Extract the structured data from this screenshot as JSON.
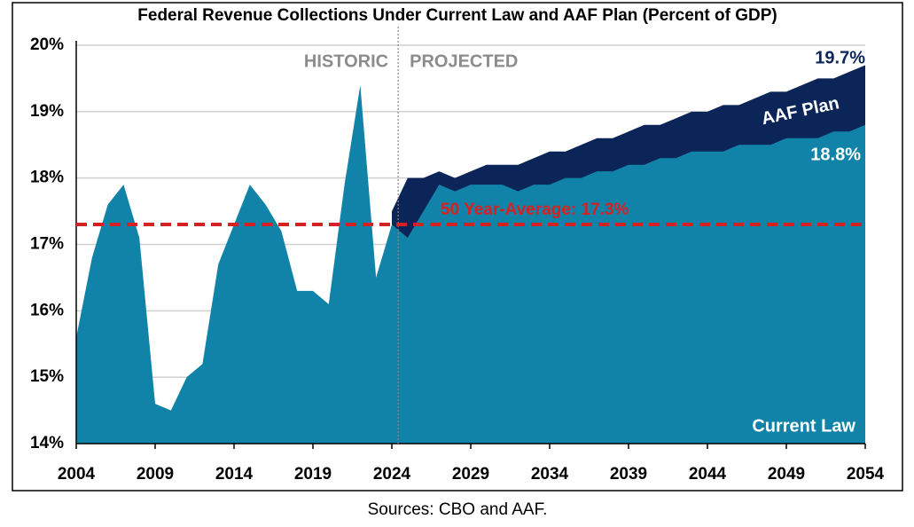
{
  "chart_data": {
    "type": "area",
    "title": "Federal Revenue Collections Under Current Law and AAF Plan (Percent of GDP)",
    "source": "Sources: CBO and AAF.",
    "x": [
      2004,
      2005,
      2006,
      2007,
      2008,
      2009,
      2010,
      2011,
      2012,
      2013,
      2014,
      2015,
      2016,
      2017,
      2018,
      2019,
      2020,
      2021,
      2022,
      2023,
      2024,
      2025,
      2026,
      2027,
      2028,
      2029,
      2030,
      2031,
      2032,
      2033,
      2034,
      2035,
      2036,
      2037,
      2038,
      2039,
      2040,
      2041,
      2042,
      2043,
      2044,
      2045,
      2046,
      2047,
      2048,
      2049,
      2050,
      2051,
      2052,
      2053,
      2054
    ],
    "series": [
      {
        "name": "AAF Plan",
        "color": "#0b2559",
        "end_label": "19.7%",
        "values": [
          null,
          null,
          null,
          null,
          null,
          null,
          null,
          null,
          null,
          null,
          null,
          null,
          null,
          null,
          null,
          null,
          null,
          null,
          null,
          null,
          17.5,
          18.0,
          18.0,
          18.1,
          18.0,
          18.1,
          18.2,
          18.2,
          18.2,
          18.3,
          18.4,
          18.4,
          18.5,
          18.6,
          18.6,
          18.7,
          18.8,
          18.8,
          18.9,
          19.0,
          19.0,
          19.1,
          19.1,
          19.2,
          19.3,
          19.3,
          19.4,
          19.5,
          19.5,
          19.6,
          19.7
        ]
      },
      {
        "name": "Current Law",
        "color": "#1283a8",
        "end_label": "18.8%",
        "values": [
          15.6,
          16.8,
          17.6,
          17.9,
          17.1,
          14.6,
          14.5,
          15.0,
          15.2,
          16.7,
          17.3,
          17.9,
          17.6,
          17.2,
          16.3,
          16.3,
          16.1,
          17.9,
          19.4,
          16.5,
          17.3,
          17.1,
          17.5,
          17.9,
          17.8,
          17.9,
          17.9,
          17.9,
          17.8,
          17.9,
          17.9,
          18.0,
          18.0,
          18.1,
          18.1,
          18.2,
          18.2,
          18.3,
          18.3,
          18.4,
          18.4,
          18.4,
          18.5,
          18.5,
          18.5,
          18.6,
          18.6,
          18.6,
          18.7,
          18.7,
          18.8
        ]
      }
    ],
    "reference_line": {
      "value": 17.3,
      "label": "50 Year-Average: 17.3%",
      "color": "#d42222"
    },
    "divider": {
      "x": 2024.4,
      "left_label": "HISTORIC",
      "right_label": "PROJECTED"
    },
    "xlim": [
      2004,
      2054
    ],
    "xticks": [
      2004,
      2009,
      2014,
      2019,
      2024,
      2029,
      2034,
      2039,
      2044,
      2049,
      2054
    ],
    "ylim": [
      14,
      20
    ],
    "yticks": [
      {
        "value": 14,
        "label": "14%"
      },
      {
        "value": 15,
        "label": "15%"
      },
      {
        "value": 16,
        "label": "16%"
      },
      {
        "value": 17,
        "label": "17%"
      },
      {
        "value": 18,
        "label": "18%"
      },
      {
        "value": 19,
        "label": "19%"
      },
      {
        "value": 20,
        "label": "20%"
      }
    ],
    "grid": true
  }
}
